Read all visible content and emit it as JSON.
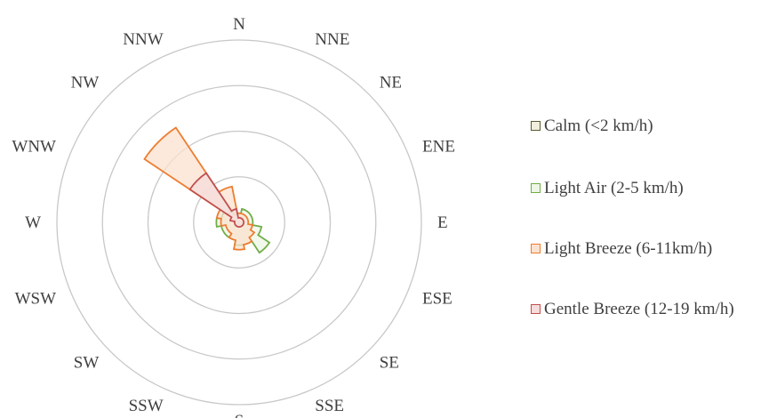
{
  "chart_data": {
    "type": "radar",
    "title": "",
    "directions": [
      "N",
      "NNE",
      "NE",
      "ENE",
      "E",
      "ESE",
      "SE",
      "SSE",
      "S",
      "SSW",
      "SW",
      "WSW",
      "W",
      "WNW",
      "NW",
      "NNW"
    ],
    "r_max": 40,
    "grid_rings": [
      10,
      20,
      30,
      40
    ],
    "series": [
      {
        "name": "Calm (<2 km/h)",
        "color": "#595933",
        "fill": "#f2eedd",
        "values": [
          1,
          1,
          1,
          1,
          1,
          1,
          1,
          1,
          1,
          1,
          1,
          1,
          1,
          1,
          1,
          1
        ]
      },
      {
        "name": "Light Air (2-5 km/h)",
        "color": "#70ad47",
        "fill": "#eef6e6",
        "values": [
          2,
          3,
          3,
          3,
          3,
          5,
          8,
          5,
          5,
          4,
          4,
          4,
          5,
          4,
          3,
          2
        ]
      },
      {
        "name": "Light Breeze (6-11km/h)",
        "color": "#ed7d31",
        "fill": "#fbe2cf",
        "values": [
          2,
          2,
          2,
          2,
          2,
          3,
          4,
          5,
          6,
          4,
          3,
          3,
          4,
          5,
          25,
          8
        ]
      },
      {
        "name": "Gentle Breeze (12-19 km/h)",
        "color": "#c0504d",
        "fill": "#f6dcdb",
        "values": [
          1,
          1,
          1,
          1,
          1,
          1,
          1,
          1,
          1,
          1,
          1,
          1,
          1,
          2,
          13,
          3
        ]
      }
    ],
    "grid": true,
    "legend": "right"
  }
}
